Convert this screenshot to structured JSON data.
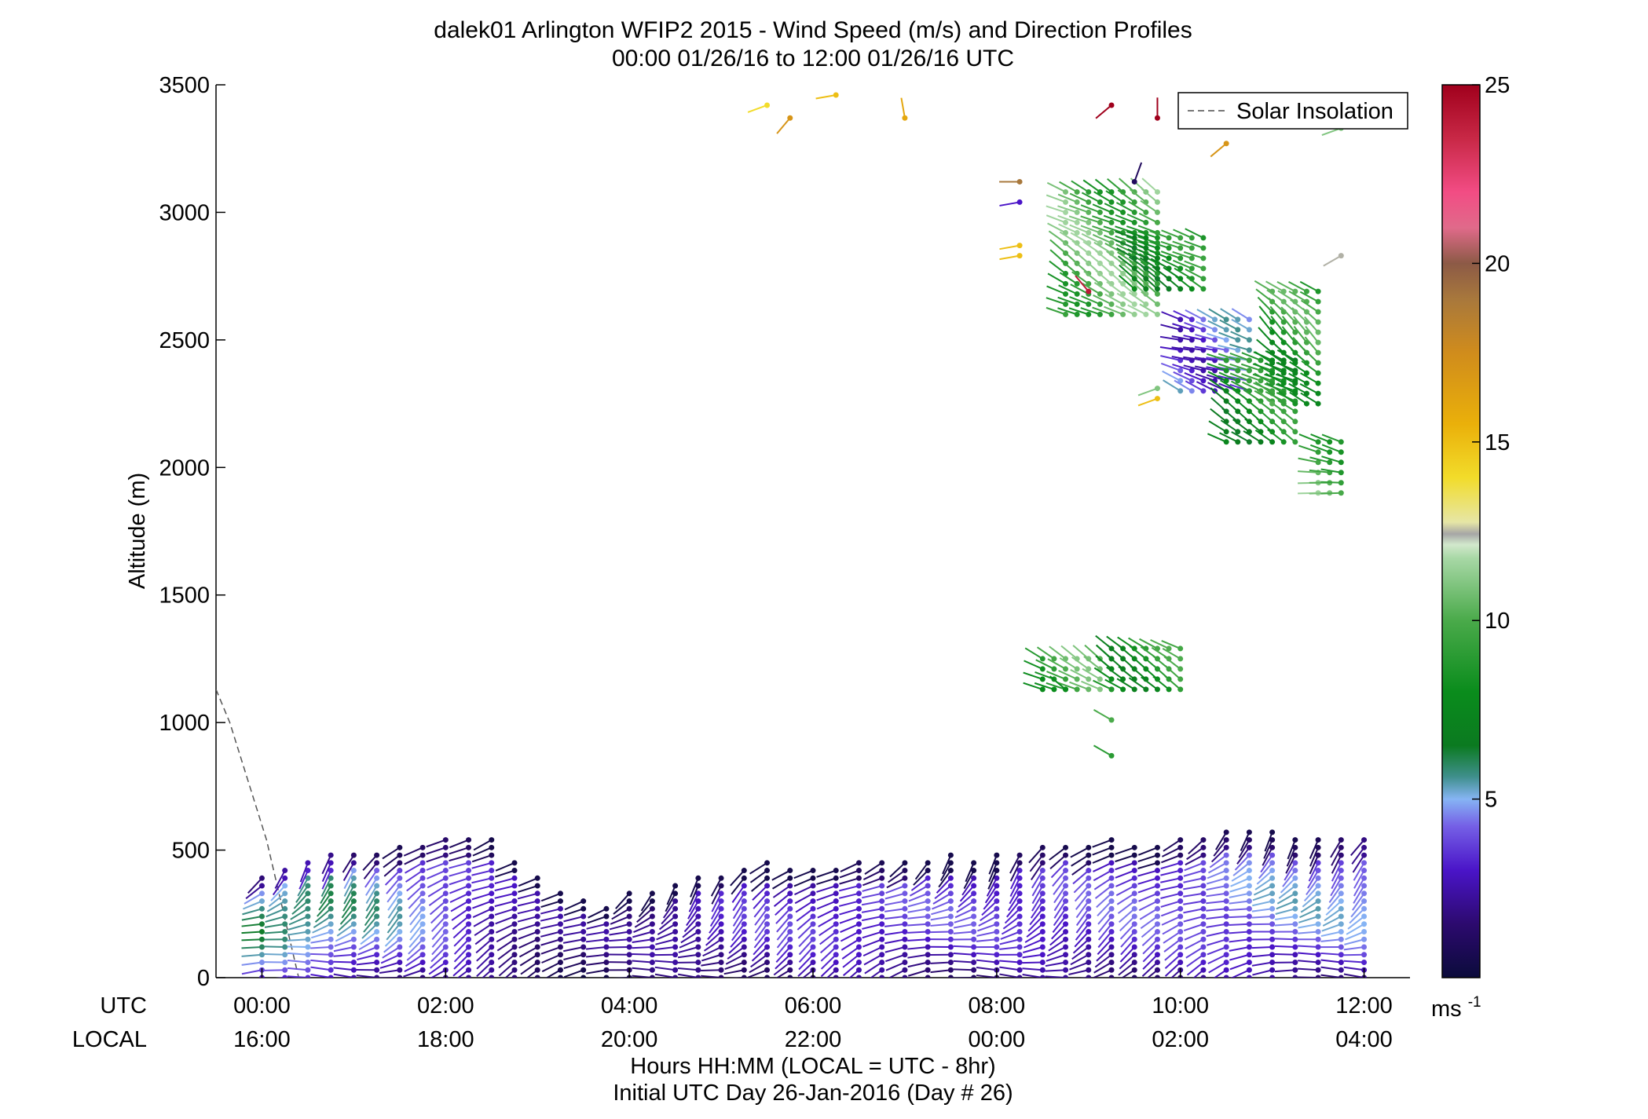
{
  "chart_data": {
    "type": "scatter",
    "title": "dalek01 Arlington WFIP2 2015 - Wind Speed (m/s) and Direction Profiles",
    "subtitle": "00:00 01/26/16 to 12:00 01/26/16  UTC",
    "ylabel": "Altitude (m)",
    "ylim": [
      0,
      3500
    ],
    "yticks": [
      "0",
      "500",
      "1000",
      "1500",
      "2000",
      "2500",
      "3000",
      "3500"
    ],
    "xlim_hours": [
      -0.5,
      12.5
    ],
    "xtick_hours": [
      0,
      2,
      4,
      6,
      8,
      10,
      12
    ],
    "xticks_utc": [
      "00:00",
      "02:00",
      "04:00",
      "06:00",
      "08:00",
      "10:00",
      "12:00"
    ],
    "xticks_local": [
      "16:00",
      "18:00",
      "20:00",
      "22:00",
      "00:00",
      "02:00",
      "04:00"
    ],
    "row_label_utc": "UTC",
    "row_label_local": "LOCAL",
    "xlabel": "Hours HH:MM  (LOCAL = UTC - 8hr)",
    "xlabel2": "Initial UTC Day 26-Jan-2016 (Day # 26)",
    "legend": {
      "entry": "Solar Insolation",
      "placement": "top-right",
      "style": "dashed gray"
    },
    "colorbar": {
      "range": [
        0,
        25
      ],
      "ticks": [
        "5",
        "10",
        "15",
        "20",
        "25"
      ],
      "unit_base": "ms",
      "unit_exp": "-1"
    },
    "solar_insolation_line": [
      [
        -0.5,
        1130
      ],
      [
        -0.35,
        1000
      ],
      [
        0.05,
        540
      ],
      [
        0.4,
        0
      ]
    ],
    "boundary_layer_top_m": [
      [
        0,
        400
      ],
      [
        0.25,
        430
      ],
      [
        0.5,
        460
      ],
      [
        0.75,
        490
      ],
      [
        1.0,
        495
      ],
      [
        1.25,
        500
      ],
      [
        1.5,
        510
      ],
      [
        1.75,
        530
      ],
      [
        2.0,
        550
      ],
      [
        2.25,
        560
      ],
      [
        2.5,
        540
      ],
      [
        2.75,
        470
      ],
      [
        3.0,
        400
      ],
      [
        3.25,
        340
      ],
      [
        3.5,
        300
      ],
      [
        3.75,
        280
      ],
      [
        4.0,
        330
      ],
      [
        4.25,
        330
      ],
      [
        4.5,
        380
      ],
      [
        4.75,
        400
      ],
      [
        5.0,
        410
      ],
      [
        5.25,
        430
      ],
      [
        5.5,
        450
      ],
      [
        5.75,
        430
      ],
      [
        6.0,
        430
      ],
      [
        6.25,
        440
      ],
      [
        6.5,
        450
      ],
      [
        6.75,
        450
      ],
      [
        7.0,
        455
      ],
      [
        7.25,
        460
      ],
      [
        7.5,
        480
      ],
      [
        7.75,
        475
      ],
      [
        8.0,
        480
      ],
      [
        8.25,
        500
      ],
      [
        8.5,
        520
      ],
      [
        8.75,
        530
      ],
      [
        9.0,
        520
      ],
      [
        9.25,
        540
      ],
      [
        9.5,
        530
      ],
      [
        9.75,
        520
      ],
      [
        10.0,
        540
      ],
      [
        10.25,
        550
      ],
      [
        10.5,
        570
      ],
      [
        10.75,
        590
      ],
      [
        11.0,
        580
      ],
      [
        11.25,
        560
      ],
      [
        11.5,
        550
      ],
      [
        11.75,
        560
      ],
      [
        12.0,
        560
      ]
    ],
    "boundary_layer_speed_ms": [
      [
        0,
        5.0
      ],
      [
        0.5,
        5.0
      ],
      [
        1.0,
        4.5
      ],
      [
        1.5,
        4.0
      ],
      [
        2.0,
        3.5
      ],
      [
        2.5,
        2.5
      ],
      [
        3.0,
        1.8
      ],
      [
        3.5,
        1.5
      ],
      [
        4.0,
        1.5
      ],
      [
        4.5,
        2.2
      ],
      [
        5.0,
        2.5
      ],
      [
        6.0,
        2.8
      ],
      [
        7.0,
        3.0
      ],
      [
        8.0,
        3.0
      ],
      [
        9.0,
        3.0
      ],
      [
        10.0,
        3.2
      ],
      [
        11.0,
        3.8
      ],
      [
        12.0,
        4.0
      ]
    ],
    "upper_clusters": [
      {
        "x0": 8.75,
        "x1": 9.75,
        "y0": 2600,
        "y1": 3100,
        "speed": 10.0,
        "dir_deg": 300
      },
      {
        "x0": 9.5,
        "x1": 10.25,
        "y0": 2700,
        "y1": 2900,
        "speed": 8.0,
        "dir_deg": 300
      },
      {
        "x0": 10.0,
        "x1": 10.75,
        "y0": 2300,
        "y1": 2600,
        "speed": 4.0,
        "dir_deg": 290
      },
      {
        "x0": 10.5,
        "x1": 11.25,
        "y0": 2100,
        "y1": 2450,
        "speed": 8.0,
        "dir_deg": 300
      },
      {
        "x0": 11.0,
        "x1": 11.5,
        "y0": 2250,
        "y1": 2700,
        "speed": 9.0,
        "dir_deg": 310
      },
      {
        "x0": 11.5,
        "x1": 11.75,
        "y0": 1900,
        "y1": 2100,
        "speed": 10.0,
        "dir_deg": 280
      },
      {
        "x0": 8.5,
        "x1": 9.25,
        "y0": 1130,
        "y1": 1250,
        "speed": 9.5,
        "dir_deg": 300
      },
      {
        "x0": 9.25,
        "x1": 10.0,
        "y0": 1130,
        "y1": 1300,
        "speed": 8.5,
        "dir_deg": 300
      }
    ],
    "isolated_barbs": [
      [
        5.5,
        3420,
        14.0,
        250
      ],
      [
        5.75,
        3370,
        17.0,
        220
      ],
      [
        6.25,
        3460,
        15.0,
        260
      ],
      [
        7.0,
        3370,
        16.0,
        350
      ],
      [
        9.25,
        3420,
        25.0,
        230
      ],
      [
        9.75,
        3370,
        25.0,
        0
      ],
      [
        10.5,
        3270,
        17.0,
        230
      ],
      [
        11.75,
        3330,
        11.0,
        250
      ],
      [
        11.75,
        2830,
        12.5,
        240
      ],
      [
        9.25,
        1010,
        10.0,
        300
      ],
      [
        9.25,
        870,
        9.0,
        300
      ],
      [
        8.75,
        1130,
        8.0,
        310
      ],
      [
        9.75,
        2270,
        15.0,
        250
      ],
      [
        9.75,
        2310,
        11.0,
        250
      ],
      [
        8.25,
        2830,
        15.0,
        260
      ],
      [
        8.25,
        2870,
        15.0,
        260
      ],
      [
        8.25,
        3120,
        19.0,
        270
      ],
      [
        8.25,
        3040,
        3.0,
        260
      ],
      [
        9.5,
        3120,
        1.0,
        20
      ],
      [
        9.0,
        2690,
        24.0,
        320
      ]
    ]
  }
}
